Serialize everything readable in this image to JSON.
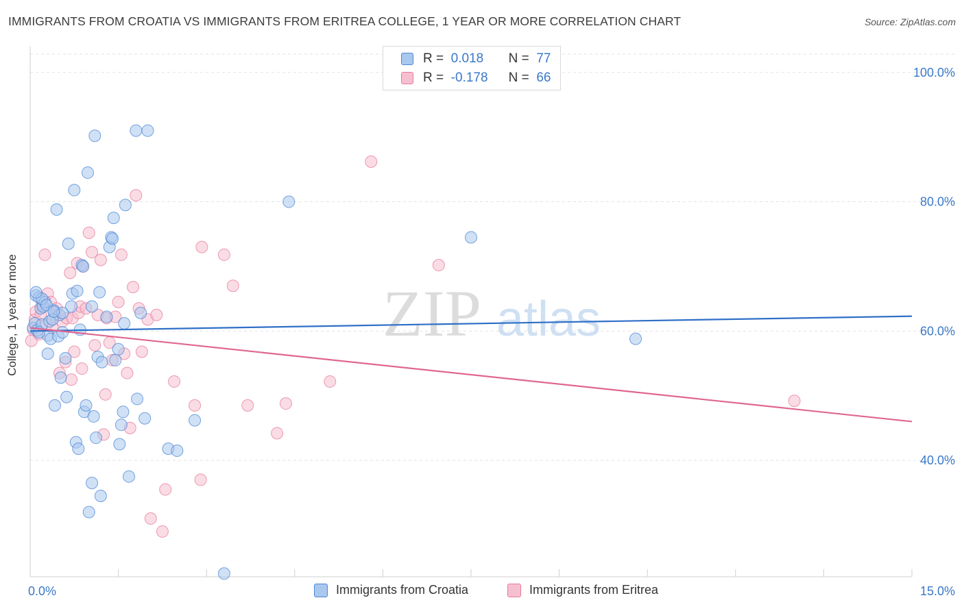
{
  "title": "IMMIGRANTS FROM CROATIA VS IMMIGRANTS FROM ERITREA COLLEGE, 1 YEAR OR MORE CORRELATION CHART",
  "source": "Source: ZipAtlas.com",
  "watermark": {
    "zip": "ZIP",
    "atlas": "atlas"
  },
  "legend": {
    "r_label": "R =",
    "n_label": "N =",
    "rows": [
      {
        "r": "0.018",
        "n": "77"
      },
      {
        "r": "-0.178",
        "n": "66"
      }
    ]
  },
  "chart_data": {
    "type": "scatter",
    "title": "IMMIGRANTS FROM CROATIA VS IMMIGRANTS FROM ERITREA COLLEGE, 1 YEAR OR MORE CORRELATION CHART",
    "xlabel": "",
    "ylabel": "College, 1 year or more",
    "xlim": [
      0,
      15
    ],
    "ylim": [
      22,
      104
    ],
    "x_tick_labels": [
      "0.0%",
      "15.0%"
    ],
    "y_ticks": [
      40,
      60,
      80,
      100
    ],
    "y_tick_labels": [
      "40.0%",
      "60.0%",
      "80.0%",
      "100.0%"
    ],
    "grid": true,
    "legend_position": "top-center",
    "colors": {
      "croatia": "#4a86d4",
      "eritrea": "#e8799b",
      "croatia_fill": "#a9c8ee",
      "eritrea_fill": "#f6bfd0",
      "axis_text": "#3a78c9"
    },
    "series": [
      {
        "name": "Immigrants from Croatia",
        "trend": {
          "x": [
            0,
            15
          ],
          "y": [
            60.0,
            62.3
          ]
        },
        "points": [
          [
            0.05,
            60.5
          ],
          [
            0.08,
            61.2
          ],
          [
            0.1,
            65.5
          ],
          [
            0.12,
            60.1
          ],
          [
            0.15,
            65.2
          ],
          [
            0.18,
            63.5
          ],
          [
            0.2,
            61.0
          ],
          [
            0.22,
            63.8
          ],
          [
            0.25,
            64.5
          ],
          [
            0.3,
            59.3
          ],
          [
            0.3,
            56.5
          ],
          [
            0.33,
            61.5
          ],
          [
            0.35,
            58.8
          ],
          [
            0.4,
            63.2
          ],
          [
            0.42,
            48.5
          ],
          [
            0.45,
            78.8
          ],
          [
            0.48,
            59.2
          ],
          [
            0.5,
            62.5
          ],
          [
            0.52,
            52.8
          ],
          [
            0.55,
            59.8
          ],
          [
            0.6,
            55.8
          ],
          [
            0.62,
            49.8
          ],
          [
            0.65,
            73.5
          ],
          [
            0.7,
            63.8
          ],
          [
            0.72,
            65.8
          ],
          [
            0.75,
            81.8
          ],
          [
            0.78,
            42.8
          ],
          [
            0.8,
            66.2
          ],
          [
            0.82,
            41.8
          ],
          [
            0.85,
            60.2
          ],
          [
            0.88,
            70.2
          ],
          [
            0.9,
            70.0
          ],
          [
            0.92,
            47.5
          ],
          [
            0.95,
            48.5
          ],
          [
            0.98,
            84.5
          ],
          [
            1.0,
            32.0
          ],
          [
            1.05,
            36.5
          ],
          [
            1.08,
            46.8
          ],
          [
            1.1,
            90.2
          ],
          [
            1.12,
            43.5
          ],
          [
            1.15,
            56.0
          ],
          [
            1.18,
            66.0
          ],
          [
            1.2,
            34.5
          ],
          [
            1.22,
            55.2
          ],
          [
            1.3,
            62.2
          ],
          [
            1.35,
            73.0
          ],
          [
            1.38,
            74.5
          ],
          [
            1.4,
            74.3
          ],
          [
            1.42,
            77.5
          ],
          [
            1.45,
            55.5
          ],
          [
            1.5,
            57.2
          ],
          [
            1.52,
            42.5
          ],
          [
            1.55,
            45.5
          ],
          [
            1.58,
            47.5
          ],
          [
            1.6,
            61.2
          ],
          [
            1.62,
            79.5
          ],
          [
            1.68,
            37.5
          ],
          [
            1.8,
            91.0
          ],
          [
            1.82,
            49.5
          ],
          [
            1.88,
            62.8
          ],
          [
            1.95,
            46.5
          ],
          [
            2.0,
            91.0
          ],
          [
            2.35,
            41.8
          ],
          [
            2.5,
            41.5
          ],
          [
            2.8,
            46.2
          ],
          [
            3.3,
            22.5
          ],
          [
            4.4,
            80.0
          ],
          [
            7.5,
            74.5
          ],
          [
            10.3,
            58.8
          ],
          [
            0.15,
            59.8
          ],
          [
            0.38,
            61.8
          ],
          [
            0.55,
            62.8
          ],
          [
            1.05,
            63.8
          ],
          [
            0.2,
            65.0
          ],
          [
            0.28,
            64.0
          ],
          [
            0.4,
            63.0
          ],
          [
            0.1,
            66.0
          ]
        ]
      },
      {
        "name": "Immigrants from Eritrea",
        "trend": {
          "x": [
            0,
            15
          ],
          "y": [
            60.5,
            46.0
          ]
        },
        "points": [
          [
            0.02,
            58.5
          ],
          [
            0.05,
            60.2
          ],
          [
            0.08,
            61.8
          ],
          [
            0.1,
            63.0
          ],
          [
            0.15,
            59.5
          ],
          [
            0.18,
            62.5
          ],
          [
            0.2,
            64.0
          ],
          [
            0.25,
            71.8
          ],
          [
            0.28,
            61.0
          ],
          [
            0.3,
            65.8
          ],
          [
            0.35,
            64.5
          ],
          [
            0.38,
            60.5
          ],
          [
            0.42,
            62.5
          ],
          [
            0.45,
            63.5
          ],
          [
            0.5,
            53.5
          ],
          [
            0.55,
            61.5
          ],
          [
            0.6,
            55.2
          ],
          [
            0.62,
            62.0
          ],
          [
            0.68,
            69.0
          ],
          [
            0.7,
            52.5
          ],
          [
            0.72,
            62.0
          ],
          [
            0.75,
            56.8
          ],
          [
            0.8,
            70.5
          ],
          [
            0.82,
            62.8
          ],
          [
            0.85,
            63.8
          ],
          [
            0.88,
            54.2
          ],
          [
            0.9,
            70.0
          ],
          [
            0.95,
            63.5
          ],
          [
            1.0,
            75.2
          ],
          [
            1.05,
            72.2
          ],
          [
            1.1,
            57.8
          ],
          [
            1.15,
            62.5
          ],
          [
            1.2,
            71.0
          ],
          [
            1.25,
            44.0
          ],
          [
            1.28,
            50.2
          ],
          [
            1.3,
            62.0
          ],
          [
            1.35,
            58.2
          ],
          [
            1.4,
            55.5
          ],
          [
            1.45,
            62.2
          ],
          [
            1.5,
            64.5
          ],
          [
            1.55,
            71.8
          ],
          [
            1.6,
            56.5
          ],
          [
            1.65,
            53.5
          ],
          [
            1.7,
            45.0
          ],
          [
            1.75,
            66.8
          ],
          [
            1.8,
            81.0
          ],
          [
            1.85,
            63.5
          ],
          [
            1.9,
            56.8
          ],
          [
            2.0,
            61.8
          ],
          [
            2.05,
            31.0
          ],
          [
            2.15,
            62.5
          ],
          [
            2.25,
            29.0
          ],
          [
            2.3,
            35.5
          ],
          [
            2.45,
            52.2
          ],
          [
            2.8,
            48.5
          ],
          [
            2.9,
            37.0
          ],
          [
            2.92,
            73.0
          ],
          [
            3.3,
            71.8
          ],
          [
            3.45,
            67.0
          ],
          [
            3.7,
            48.5
          ],
          [
            4.2,
            44.2
          ],
          [
            4.35,
            48.8
          ],
          [
            5.1,
            52.2
          ],
          [
            5.8,
            86.2
          ],
          [
            6.95,
            70.2
          ],
          [
            13.0,
            49.2
          ]
        ]
      }
    ]
  },
  "bottom_legend": [
    "Immigrants from Croatia",
    "Immigrants from Eritrea"
  ]
}
